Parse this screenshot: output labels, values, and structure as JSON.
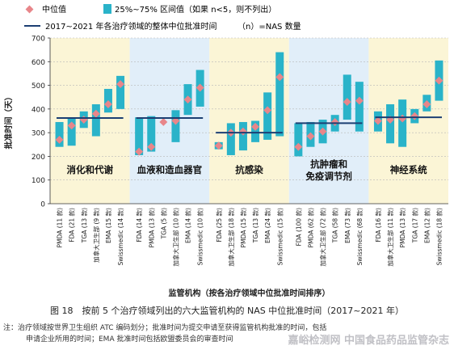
{
  "legend": {
    "median_label": "中位值",
    "iqr_label": "25%~75% 区间值（如果 n<5，则不列出）",
    "overall_label": "2017~2021 年各治疗领域的整体中位批准时间",
    "n_label": "（n）=NAS 数量"
  },
  "xlabel": "监管机构（按各治疗领域中位批准时间排序）",
  "ylabel": "批准时间（天）",
  "caption": "图 18　按前 5 个治疗领域列出的六大监管机构的 NAS 中位批准时间（2017~2021 年）",
  "note_line1": "注：治疗领域按世界卫生组织 ATC 编码划分；批准时间为提交申请至获得监管机构批准的时间，包括",
  "note_line2": "申请企业所用的时间；EMA 批准时间包括欧盟委员会的审查时间",
  "watermark": "嘉峪检测网 中国食品药品监管杂志",
  "colors": {
    "median": "#e8868a",
    "iqr": "#2ab3c9",
    "overall": "#1c3f73",
    "panel_odd": "#fbf5d6",
    "panel_even": "#e1eef9"
  },
  "chart_data": {
    "type": "box",
    "ylim": [
      0,
      700
    ],
    "yticks": [
      0,
      100,
      200,
      300,
      400,
      500,
      600,
      700
    ],
    "grid": true,
    "panels": [
      {
        "name": "消化和代谢",
        "overall_median": 362,
        "items": [
          {
            "label": "PMDA (11 款)",
            "q1": 240,
            "q3": 345,
            "median": 270
          },
          {
            "label": "FDA (21 款)",
            "q1": 245,
            "q3": 365,
            "median": 330
          },
          {
            "label": "TGA (13 款)",
            "q1": 320,
            "q3": 390,
            "median": 355
          },
          {
            "label": "加拿大卫生部 (9 款)",
            "q1": 285,
            "q3": 420,
            "median": 380
          },
          {
            "label": "EMA (15 款)",
            "q1": 385,
            "q3": 485,
            "median": 420
          },
          {
            "label": "Swissmedic (14 款)",
            "q1": 400,
            "q3": 540,
            "median": 505
          }
        ]
      },
      {
        "name": "血液和造血器官",
        "overall_median": 362,
        "items": [
          {
            "label": "FDA (14 款)",
            "q1": 205,
            "q3": 365,
            "median": 220
          },
          {
            "label": "PMDA (13 款)",
            "q1": 220,
            "q3": 370,
            "median": 240
          },
          {
            "label": "TGA (5 款)",
            "q1": null,
            "q3": null,
            "median": 345
          },
          {
            "label": "加拿大卫生部 (10 款)",
            "q1": 260,
            "q3": 395,
            "median": 350
          },
          {
            "label": "EMA (14 款)",
            "q1": 375,
            "q3": 505,
            "median": 440
          },
          {
            "label": "Swissmedic (10 款)",
            "q1": 410,
            "q3": 565,
            "median": 490
          }
        ]
      },
      {
        "name": "抗感染",
        "overall_median": 300,
        "items": [
          {
            "label": "FDA (25 款)",
            "q1": 230,
            "q3": 260,
            "median": 245
          },
          {
            "label": "加拿大卫生部 (18 款)",
            "q1": 205,
            "q3": 340,
            "median": 300
          },
          {
            "label": "PMDA (15 款)",
            "q1": 225,
            "q3": 345,
            "median": 305
          },
          {
            "label": "TGA (13 款)",
            "q1": 260,
            "q3": 350,
            "median": 325
          },
          {
            "label": "EMA (24 款)",
            "q1": 270,
            "q3": 470,
            "median": 395
          },
          {
            "label": "Swissmedic (15 款)",
            "q1": 285,
            "q3": 640,
            "median": 535
          }
        ]
      },
      {
        "name": "抗肿瘤和\n免疫调节剂",
        "overall_median": 340,
        "items": [
          {
            "label": "FDA (100 款)",
            "q1": 200,
            "q3": 340,
            "median": 240
          },
          {
            "label": "PMDA (62 款)",
            "q1": 240,
            "q3": 345,
            "median": 285
          },
          {
            "label": "加拿大卫生部 (72 款)",
            "q1": 255,
            "q3": 355,
            "median": 305
          },
          {
            "label": "TGA (58 款)",
            "q1": 305,
            "q3": 375,
            "median": 345
          },
          {
            "label": "EMA (73 款)",
            "q1": 355,
            "q3": 545,
            "median": 430
          },
          {
            "label": "Swissmedic (68 款)",
            "q1": 305,
            "q3": 515,
            "median": 435
          }
        ]
      },
      {
        "name": "神经系统",
        "overall_median": 365,
        "items": [
          {
            "label": "FDA (16 款)",
            "q1": 305,
            "q3": 390,
            "median": 350
          },
          {
            "label": "加拿大卫生部 (11 款)",
            "q1": 255,
            "q3": 420,
            "median": 355
          },
          {
            "label": "PMDA (13 款)",
            "q1": 240,
            "q3": 440,
            "median": 360
          },
          {
            "label": "TGA (17 款)",
            "q1": 340,
            "q3": 400,
            "median": 370
          },
          {
            "label": "EMA (12 款)",
            "q1": 390,
            "q3": 460,
            "median": 420
          },
          {
            "label": "Swissmedic (18 款)",
            "q1": 435,
            "q3": 605,
            "median": 520
          }
        ]
      }
    ]
  }
}
